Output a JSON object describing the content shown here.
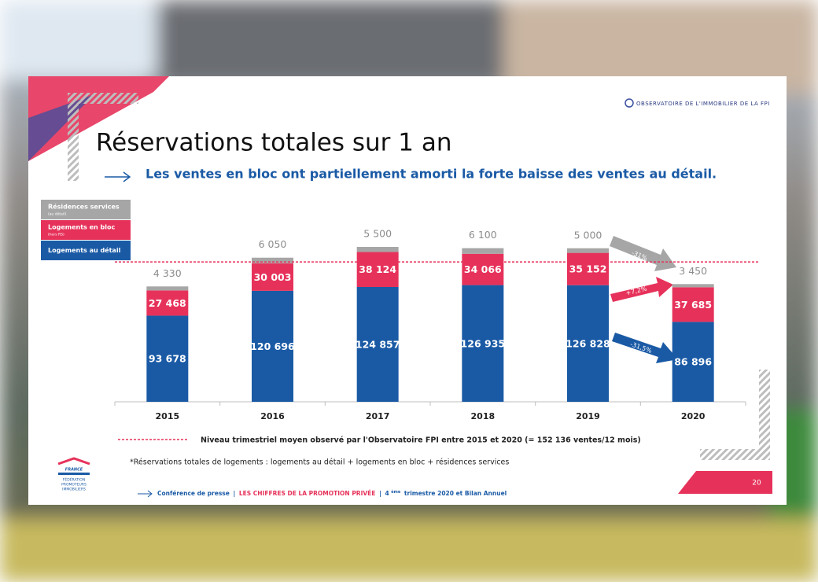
{
  "header": {
    "logo_text": "OBSERVATOIRE DE L'IMMOBILIER DE LA FPI",
    "title": "Réservations totales sur 1 an",
    "subtitle": "Les ventes en bloc ont partiellement amorti la forte baisse des ventes au détail."
  },
  "chart_data": {
    "type": "bar",
    "stacked": true,
    "categories": [
      "2015",
      "2016",
      "2017",
      "2018",
      "2019",
      "2020"
    ],
    "series": [
      {
        "name": "Logements au détail",
        "color": "#1a5aa5",
        "label_color": "#ffffff",
        "values": [
          93678,
          120696,
          124857,
          126935,
          126828,
          86896
        ],
        "value_labels": [
          "93 678",
          "120 696",
          "124 857",
          "126 935",
          "126 828",
          "86 896"
        ]
      },
      {
        "name": "Logements en bloc",
        "note": "(hors RS)",
        "color": "#e6325a",
        "label_color": "#ffffff",
        "values": [
          27468,
          30003,
          38124,
          34066,
          35152,
          37685
        ],
        "value_labels": [
          "27 468",
          "30 003",
          "38 124",
          "34 066",
          "35 152",
          "37 685"
        ]
      },
      {
        "name": "Résidences services",
        "note": "(au détail)",
        "color": "#a6a6a6",
        "label_color": "#8c8c8c",
        "values": [
          4330,
          6050,
          5500,
          6100,
          5000,
          3450
        ],
        "value_labels": [
          "4 330",
          "6 050",
          "5 500",
          "6 100",
          "5 000",
          "3 450"
        ]
      }
    ],
    "reference_line": {
      "value": 152136,
      "color": "#e6325a",
      "label": "Niveau trimestriel moyen observé par l'Observatoire FPI entre 2015 et 2020 (= 152 136 ventes/12 mois)"
    },
    "annotations": [
      "-31%",
      "+7,2%",
      "-31,5%"
    ]
  },
  "footnote": "*Réservations totales de logements : logements au détail + logements en bloc + résidences services",
  "footer": {
    "parts": [
      "Conférence de presse",
      "|",
      "LES CHIFFRES DE LA PROMOTION PRIVÉE",
      "|",
      "4",
      "ème",
      "trimestre 2020 et Bilan Annuel"
    ],
    "page": "20",
    "federation": [
      "FRANCE",
      "FÉDÉRATION",
      "PROMOTEURS",
      "IMMOBILIERS"
    ]
  }
}
